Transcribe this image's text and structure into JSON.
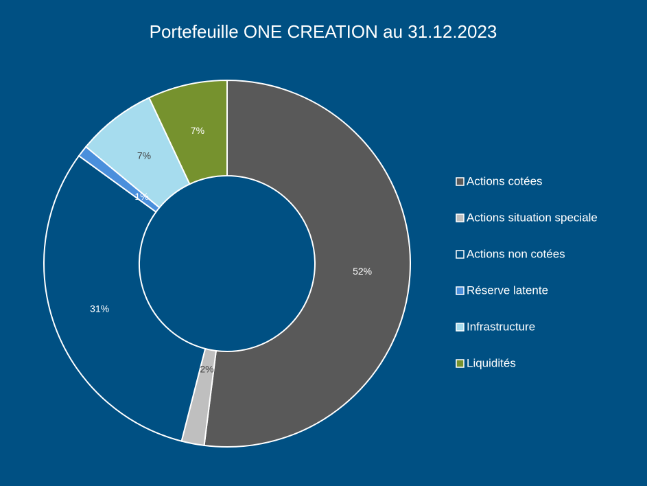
{
  "chart_data": {
    "type": "donut",
    "title": "Portefeuille ONE CREATION au 31.12.2023",
    "categories": [
      "Actions cotées",
      "Actions situation speciale",
      "Actions non cotées",
      "Réserve latente",
      "Infrastructure",
      "Liquidités"
    ],
    "values": [
      52,
      2,
      31,
      1,
      7,
      7
    ],
    "value_labels": [
      "52%",
      "2%",
      "31%",
      "1%",
      "7%",
      "7%"
    ],
    "colors": [
      "#595959",
      "#bfbfbf",
      "#005083",
      "#4a8fdc",
      "#a6dcee",
      "#76922e"
    ],
    "legend": "right"
  }
}
